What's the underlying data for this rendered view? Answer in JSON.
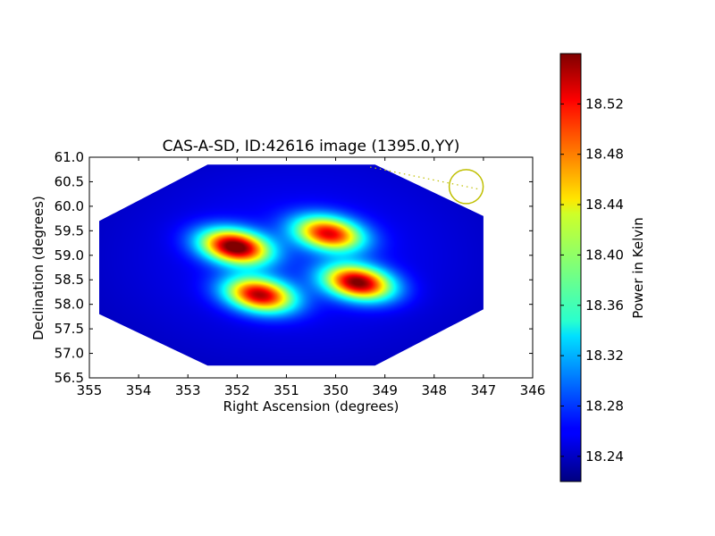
{
  "chart_data": {
    "type": "heatmap",
    "title": "CAS-A-SD, ID:42616 image (1395.0,YY)",
    "xlabel": "Right Ascension (degrees)",
    "ylabel": "Declination (degrees)",
    "xlim": [
      355,
      346
    ],
    "ylim": [
      56.5,
      61.0
    ],
    "x_ticks": [
      355,
      354,
      353,
      352,
      351,
      350,
      349,
      348,
      347,
      346
    ],
    "y_ticks": [
      "56.5",
      "57.0",
      "57.5",
      "58.0",
      "58.5",
      "59.0",
      "59.5",
      "60.0",
      "60.5",
      "61.0"
    ],
    "colorbar": {
      "label": "Power in Kelvin",
      "range": [
        18.22,
        18.56
      ],
      "ticks": [
        "18.24",
        "18.28",
        "18.32",
        "18.36",
        "18.40",
        "18.44",
        "18.48",
        "18.52"
      ],
      "colormap": "jet"
    },
    "background_level": 18.235,
    "footprint_polygon": [
      [
        352.6,
        60.85
      ],
      [
        349.2,
        60.85
      ],
      [
        347.0,
        59.8
      ],
      [
        347.0,
        57.9
      ],
      [
        349.2,
        56.75
      ],
      [
        352.6,
        56.75
      ],
      [
        354.8,
        57.8
      ],
      [
        354.8,
        59.7
      ]
    ],
    "peaks": [
      {
        "ra": 352.05,
        "dec": 59.18,
        "value": 18.555
      },
      {
        "ra": 350.15,
        "dec": 59.45,
        "value": 18.5
      },
      {
        "ra": 349.55,
        "dec": 58.45,
        "value": 18.54
      },
      {
        "ra": 351.55,
        "dec": 58.2,
        "value": 18.52
      }
    ],
    "marker": {
      "type": "circle",
      "ra": 347.35,
      "dec": 60.4,
      "color": "#bfbf00"
    },
    "track": {
      "from": [
        349.3,
        60.8
      ],
      "to": [
        347.1,
        60.35
      ],
      "style": "dotted",
      "color": "#bfbf00"
    }
  }
}
